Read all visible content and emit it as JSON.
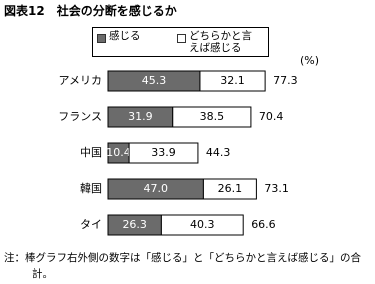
{
  "chart_data": {
    "type": "stacked-barh",
    "title": "図表12　社会の分断を感じるか",
    "unit_label": "(%)",
    "categories": [
      "アメリカ",
      "フランス",
      "中国",
      "韓国",
      "タイ"
    ],
    "series": [
      {
        "name": "感じる",
        "color": "#6b6b6b",
        "values": [
          45.3,
          31.9,
          10.4,
          47.0,
          26.3
        ],
        "value_labels": [
          "45.3",
          "31.9",
          "10.4",
          "47.0",
          "26.3"
        ]
      },
      {
        "name": "どちらかと言えば感じる",
        "color": "#ffffff",
        "values": [
          32.1,
          38.5,
          33.9,
          26.1,
          40.3
        ]
      }
    ],
    "totals": [
      77.3,
      70.4,
      44.3,
      73.1,
      66.6
    ],
    "note": "注：棒グラフ右外側の数字は「感じる」と「どちらかと言えば感じる」の合計。"
  }
}
